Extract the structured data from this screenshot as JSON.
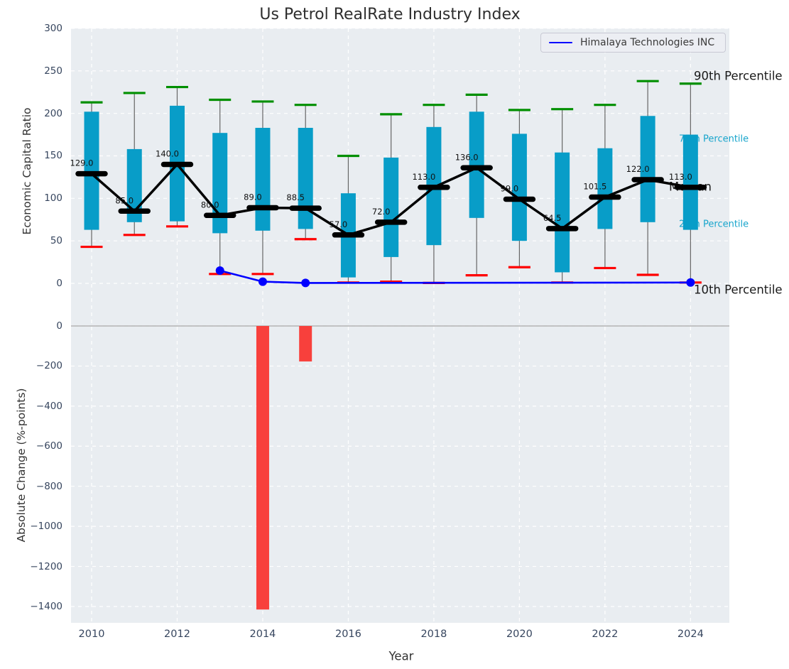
{
  "colors": {
    "box": "#089dc8",
    "p90_cap": "#008f00",
    "p10_cap": "#ff0000",
    "median": "#000000",
    "company_line": "#0000ff",
    "change_bar": "#f8403c",
    "plot_bg": "#e9edf1",
    "grid": "#ffffff",
    "whisker": "#666666",
    "zero_line": "#b3b3b3",
    "tick_text": "#36455e",
    "annotation_black": "#1a1a1a",
    "annotation_cyan": "#18a5cc"
  },
  "chart_data": [
    {
      "type": "percentile-band-boxes-with-median-line",
      "title": "Us Petrol RealRate Industry Index",
      "ylabel": "Economic Capital Ratio",
      "ylim": [
        -37,
        300
      ],
      "ytick_labels": [
        "0",
        "50",
        "100",
        "150",
        "200",
        "250",
        "300"
      ],
      "ytick_values": [
        0,
        50,
        100,
        150,
        200,
        250,
        300
      ],
      "grid": true,
      "legend": {
        "position": "upper right",
        "entries": [
          {
            "label": "Himalaya Technologies INC",
            "color": "#0000ff"
          }
        ]
      },
      "years": [
        2010,
        2011,
        2012,
        2013,
        2014,
        2015,
        2016,
        2017,
        2018,
        2019,
        2020,
        2021,
        2022,
        2023,
        2024
      ],
      "series": [
        {
          "name": "90th Percentile",
          "style": "green-cap",
          "values": [
            213,
            224,
            231,
            216,
            214,
            210,
            150,
            199,
            210,
            222,
            204,
            205,
            210,
            238,
            235
          ]
        },
        {
          "name": "75th Percentile",
          "style": "box-top",
          "values": [
            202,
            158,
            209,
            177,
            183,
            183,
            106,
            148,
            184,
            202,
            176,
            154,
            159,
            197,
            175
          ]
        },
        {
          "name": "Median",
          "style": "black-dash-and-line",
          "values": [
            129,
            85,
            140,
            80,
            89,
            88.5,
            57,
            72,
            113,
            136,
            99,
            64.5,
            101.5,
            122,
            113
          ]
        },
        {
          "name": "25th Percentile",
          "style": "box-bottom",
          "values": [
            63,
            72,
            73,
            59,
            62,
            64,
            7,
            31,
            45,
            77,
            50,
            13,
            64,
            72,
            63
          ]
        },
        {
          "name": "10th Percentile",
          "style": "red-cap",
          "values": [
            43,
            57,
            67,
            11,
            11,
            52,
            1,
            2,
            0.5,
            9.5,
            19,
            1,
            18,
            10,
            1
          ]
        }
      ],
      "median_labels": [
        "129.0",
        "85.0",
        "140.0",
        "80.0",
        "89.0",
        "88.5",
        "57.0",
        "72.0",
        "113.0",
        "136.0",
        "99.0",
        "64.5",
        "101.5",
        "122.0",
        "113.0"
      ],
      "company_series": {
        "name": "Himalaya Technologies INC",
        "x": [
          2013,
          2014,
          2015,
          2024
        ],
        "values": [
          15,
          2,
          0.5,
          1
        ]
      },
      "annotations": [
        {
          "text": "90th Percentile",
          "emphasis": "big",
          "color": "black"
        },
        {
          "text": "75th Percentile",
          "emphasis": "small",
          "color": "cyan"
        },
        {
          "text": "Median",
          "emphasis": "big",
          "color": "black"
        },
        {
          "text": "25th Percentile",
          "emphasis": "small",
          "color": "cyan"
        },
        {
          "text": "10th Percentile",
          "emphasis": "big",
          "color": "black"
        }
      ]
    },
    {
      "type": "bar",
      "ylabel": "Absolute Change (%-points)",
      "xlabel": "Year",
      "ylim": [
        -1480,
        60
      ],
      "ytick_labels": [
        "0",
        "−200",
        "−400",
        "−600",
        "−800",
        "−1000",
        "−1200",
        "−1400"
      ],
      "ytick_values": [
        0,
        -200,
        -400,
        -600,
        -800,
        -1000,
        -1200,
        -1400
      ],
      "xtick_labels": [
        "2010",
        "2012",
        "2014",
        "2016",
        "2018",
        "2020",
        "2022",
        "2024"
      ],
      "xtick_values": [
        2010,
        2012,
        2014,
        2016,
        2018,
        2020,
        2022,
        2024
      ],
      "grid": true,
      "x": [
        2014,
        2015
      ],
      "values": [
        -1415,
        -177
      ]
    }
  ]
}
